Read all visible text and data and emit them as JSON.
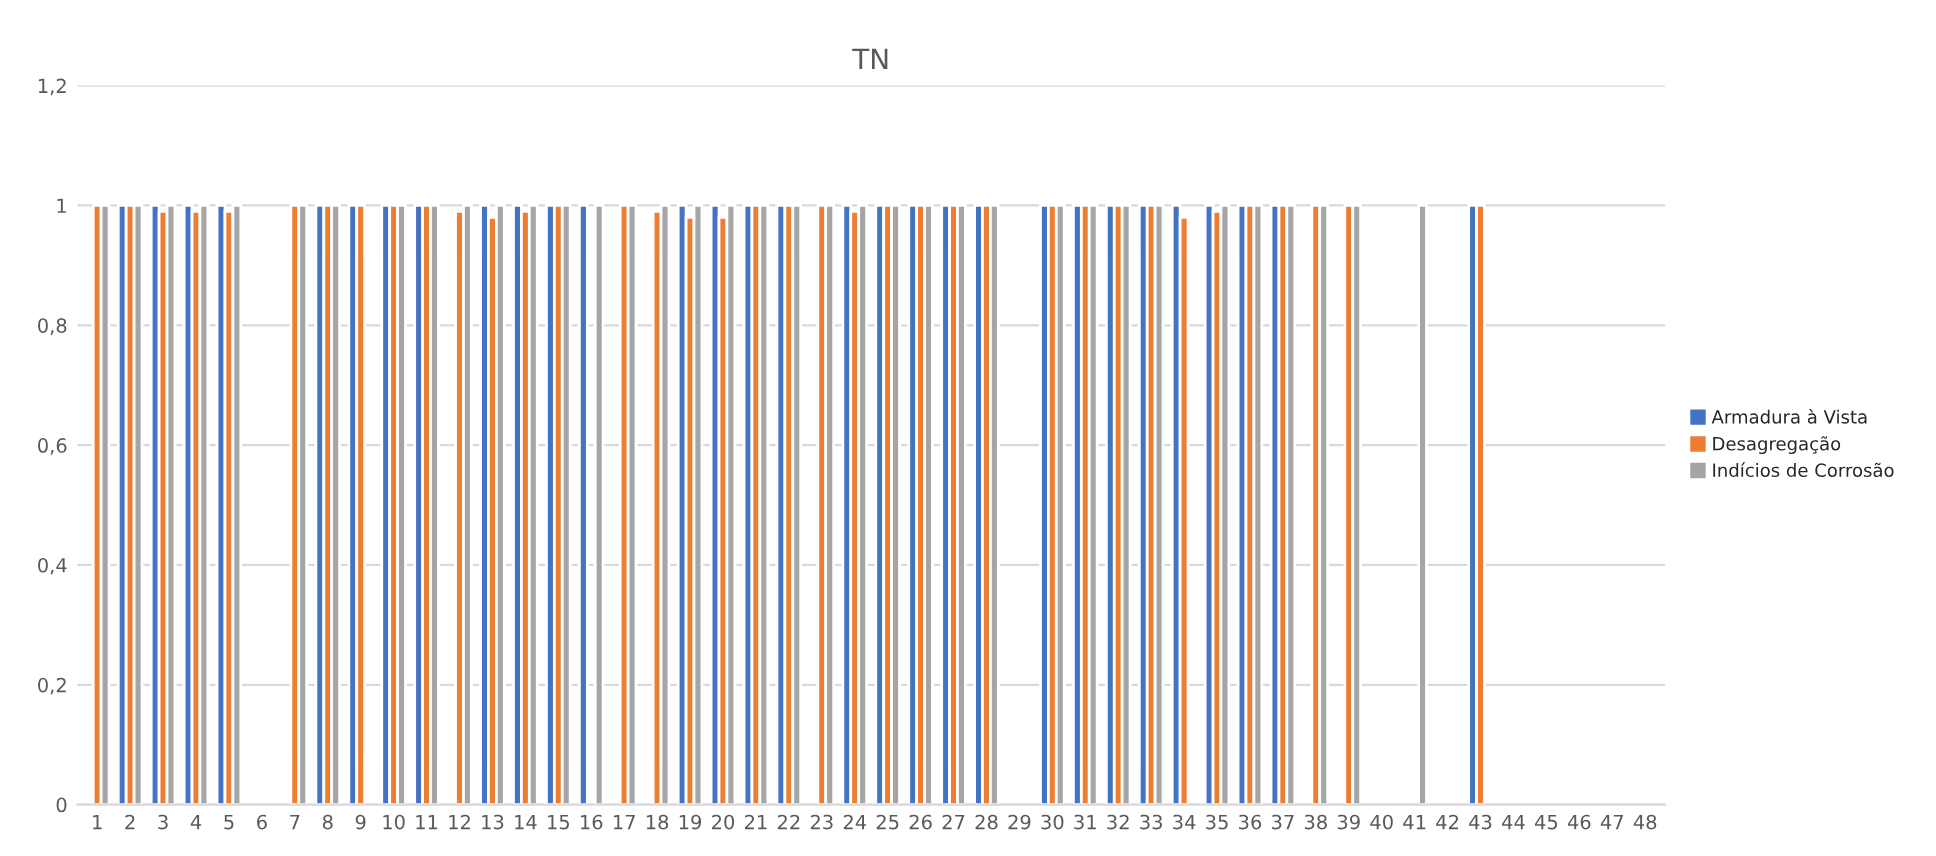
{
  "chart_data": {
    "type": "bar",
    "title": "TN",
    "categories": [
      "1",
      "2",
      "3",
      "4",
      "5",
      "6",
      "7",
      "8",
      "9",
      "10",
      "11",
      "12",
      "13",
      "14",
      "15",
      "16",
      "17",
      "18",
      "19",
      "20",
      "21",
      "22",
      "23",
      "24",
      "25",
      "26",
      "27",
      "28",
      "29",
      "30",
      "31",
      "32",
      "33",
      "34",
      "35",
      "36",
      "37",
      "38",
      "39",
      "40",
      "41",
      "42",
      "43",
      "44",
      "45",
      "46",
      "47",
      "48"
    ],
    "series": [
      {
        "name": "Armadura à Vista",
        "color": "#4472c4",
        "values": [
          null,
          1,
          1,
          1,
          1,
          null,
          null,
          1,
          1,
          1,
          1,
          null,
          1,
          1,
          1,
          1,
          null,
          null,
          1,
          1,
          1,
          1,
          null,
          1,
          1,
          1,
          1,
          1,
          null,
          1,
          1,
          1,
          1,
          1,
          1,
          1,
          1,
          null,
          null,
          null,
          null,
          null,
          1,
          null,
          null,
          null,
          null,
          null
        ]
      },
      {
        "name": "Desagregação",
        "color": "#ed7d31",
        "values": [
          1,
          1,
          0.99,
          0.99,
          0.99,
          null,
          1,
          1,
          1,
          1,
          1,
          0.99,
          0.98,
          0.99,
          1,
          null,
          1,
          0.99,
          0.98,
          0.98,
          1,
          1,
          1,
          0.99,
          1,
          1,
          1,
          1,
          null,
          1,
          1,
          1,
          1,
          0.98,
          0.99,
          1,
          1,
          1,
          1,
          null,
          null,
          null,
          1,
          null,
          null,
          null,
          null,
          null
        ]
      },
      {
        "name": "Indícios de Corrosão",
        "color": "#a5a5a5",
        "values": [
          1,
          1,
          1,
          1,
          1,
          null,
          1,
          1,
          null,
          1,
          1,
          1,
          1,
          1,
          1,
          1,
          1,
          1,
          1,
          1,
          1,
          1,
          1,
          1,
          1,
          1,
          1,
          1,
          null,
          1,
          1,
          1,
          1,
          null,
          1,
          1,
          1,
          1,
          1,
          null,
          1,
          null,
          null,
          null,
          null,
          null,
          null,
          null
        ]
      }
    ],
    "ylim": [
      0,
      1.2
    ],
    "yticks": [
      {
        "value": 0,
        "label": "0"
      },
      {
        "value": 0.2,
        "label": "0,2"
      },
      {
        "value": 0.4,
        "label": "0,4"
      },
      {
        "value": 0.6,
        "label": "0,6"
      },
      {
        "value": 0.8,
        "label": "0,8"
      },
      {
        "value": 1,
        "label": "1"
      },
      {
        "value": 1.2,
        "label": "1,2"
      }
    ],
    "grid": "y",
    "legend": "right"
  }
}
